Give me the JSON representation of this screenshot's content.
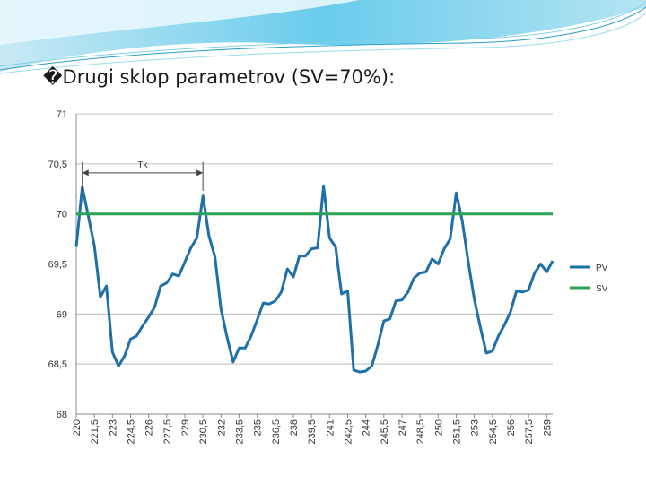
{
  "slide": {
    "title": "�Drugi sklop parametrov (SV=70%):"
  },
  "chart_data": {
    "type": "line",
    "annotation": "Tk",
    "ylim": [
      68,
      71
    ],
    "y_ticks": [
      "71",
      "70,5",
      "70",
      "69,5",
      "69",
      "68,5",
      "68"
    ],
    "x_tick_labels": [
      "220",
      "221,5",
      "223",
      "224,5",
      "226",
      "227,5",
      "229",
      "230,5",
      "232",
      "233,5",
      "235",
      "236,5",
      "238",
      "239,5",
      "241",
      "242,5",
      "244",
      "245,5",
      "247",
      "248,5",
      "250",
      "251,5",
      "253",
      "254,5",
      "256",
      "257,5",
      "259"
    ],
    "x_range": [
      220,
      259.5
    ],
    "grid": "horizontal",
    "legend": "right",
    "series": [
      {
        "name": "PV",
        "color": "#1f6fa8",
        "x": [
          220,
          220.5,
          221,
          221.5,
          222,
          222.5,
          223,
          223.5,
          224,
          224.5,
          225,
          225.5,
          226,
          226.5,
          227,
          227.5,
          228,
          228.5,
          229,
          229.5,
          230,
          230.5,
          231,
          231.5,
          232,
          232.5,
          233,
          233.5,
          234,
          234.5,
          235,
          235.5,
          236,
          236.5,
          237,
          237.5,
          238,
          238.5,
          239,
          239.5,
          240,
          240.5,
          241,
          241.5,
          242,
          242.5,
          243,
          243.5,
          244,
          244.5,
          245,
          245.5,
          246,
          246.5,
          247,
          247.5,
          248,
          248.5,
          249,
          249.5,
          250,
          250.5,
          251,
          251.5,
          252,
          252.5,
          253,
          253.5,
          254,
          254.5,
          255,
          255.5,
          256,
          256.5,
          257,
          257.5,
          258,
          258.5,
          259,
          259.5
        ],
        "values": [
          69.67,
          70.27,
          69.98,
          69.68,
          69.17,
          69.28,
          68.62,
          68.48,
          68.58,
          68.75,
          68.78,
          68.88,
          68.97,
          69.07,
          69.28,
          69.31,
          69.4,
          69.38,
          69.52,
          69.66,
          69.76,
          70.18,
          69.78,
          69.57,
          69.05,
          68.77,
          68.52,
          68.66,
          68.66,
          68.78,
          68.94,
          69.11,
          69.1,
          69.13,
          69.22,
          69.45,
          69.37,
          69.58,
          69.58,
          69.65,
          69.66,
          70.28,
          69.76,
          69.67,
          69.2,
          69.23,
          68.44,
          68.42,
          68.43,
          68.48,
          68.69,
          68.93,
          68.95,
          69.13,
          69.14,
          69.22,
          69.36,
          69.41,
          69.42,
          69.55,
          69.5,
          69.65,
          69.75,
          70.21,
          69.93,
          69.52,
          69.15,
          68.87,
          68.61,
          68.63,
          68.78,
          68.89,
          69.02,
          69.23,
          69.22,
          69.24,
          69.41,
          69.5,
          69.42,
          69.53
        ]
      },
      {
        "name": "SV",
        "color": "#2aa355",
        "x": [
          220,
          259.5
        ],
        "values": [
          70,
          70
        ]
      }
    ]
  }
}
